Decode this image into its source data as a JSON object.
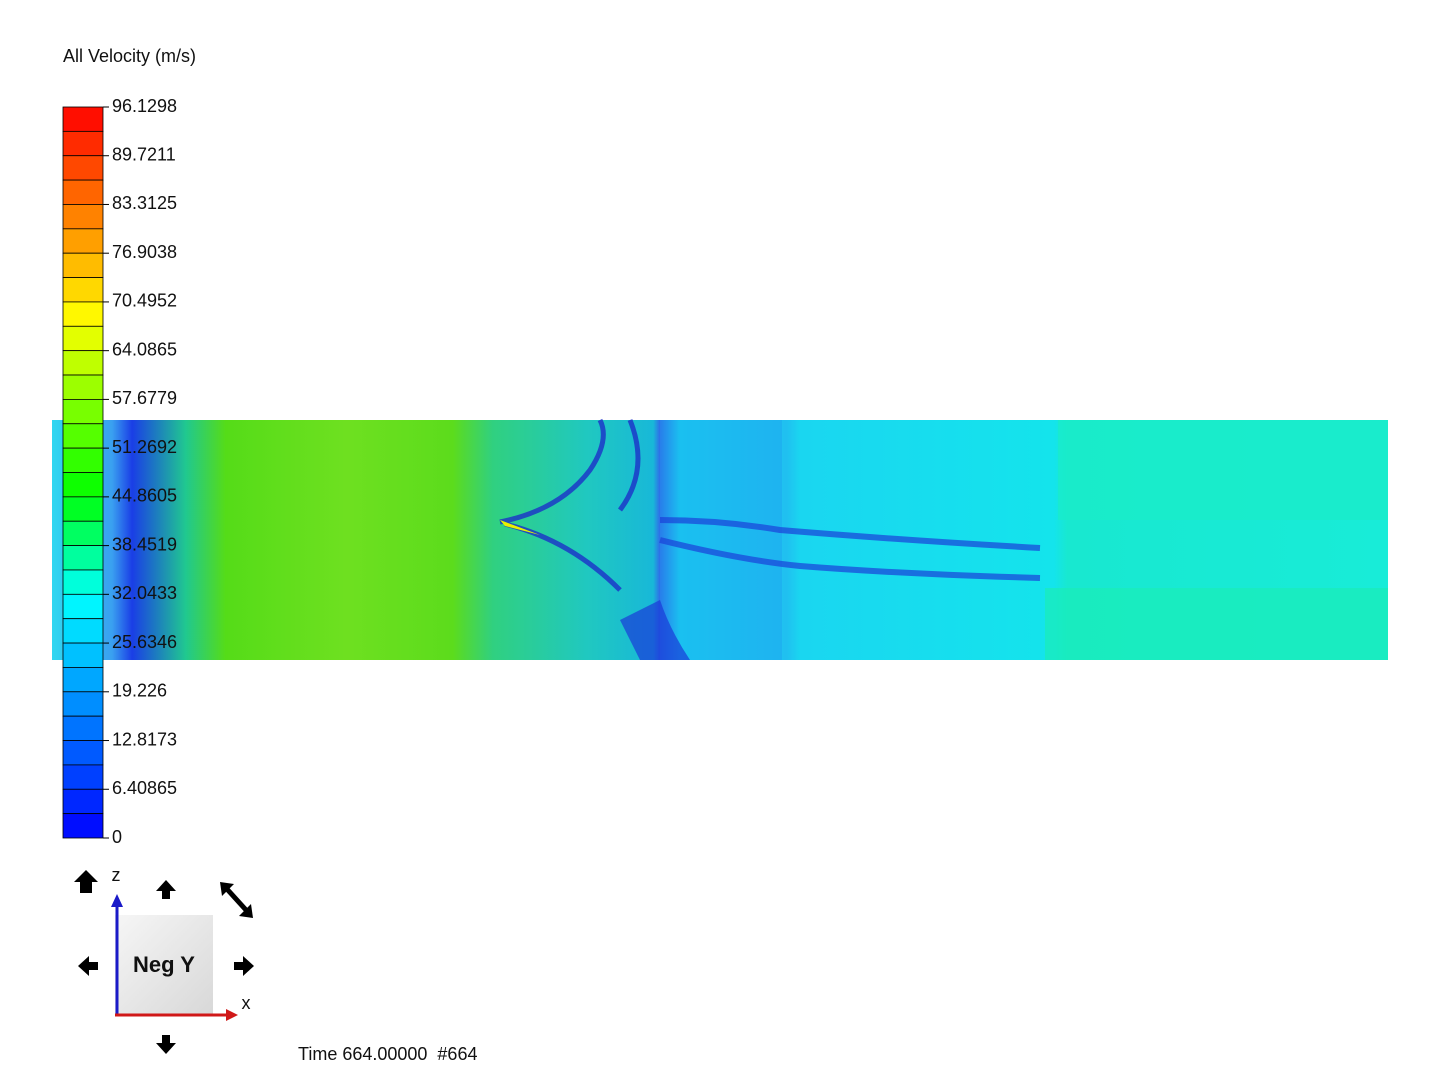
{
  "legend": {
    "title": "All Velocity (m/s)",
    "labels": [
      "96.1298",
      "89.7211",
      "83.3125",
      "76.9038",
      "70.4952",
      "64.0865",
      "57.6779",
      "51.2692",
      "44.8605",
      "38.4519",
      "32.0433",
      "25.6346",
      "19.226",
      "12.8173",
      "6.40865",
      "0"
    ]
  },
  "view_cube": {
    "label": "Neg Y",
    "axis_z": "z",
    "axis_x": "x"
  },
  "status": {
    "time": "Time 664.00000  #664"
  }
}
